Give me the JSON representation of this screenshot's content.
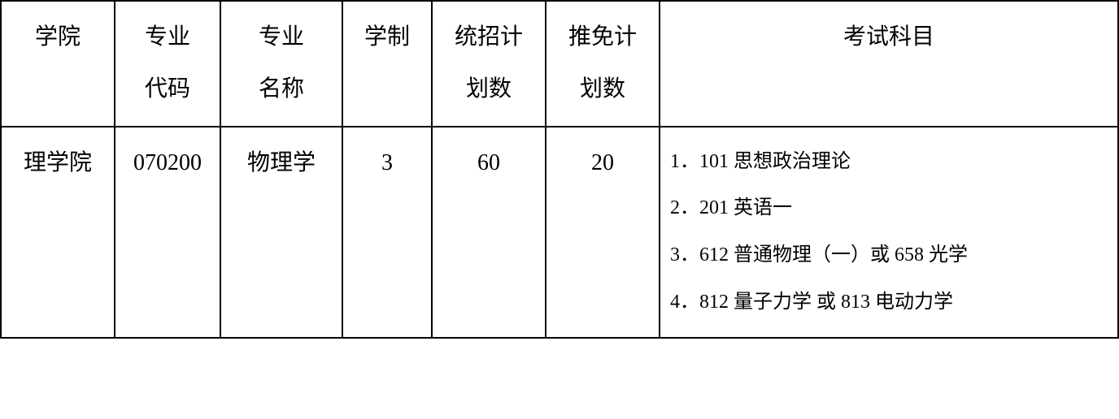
{
  "table": {
    "headers": {
      "college": "学院",
      "code_line1": "专业",
      "code_line2": "代码",
      "name_line1": "专业",
      "name_line2": "名称",
      "duration": "学制",
      "plan1_line1": "统招计",
      "plan1_line2": "划数",
      "plan2_line1": "推免计",
      "plan2_line2": "划数",
      "subjects": "考试科目"
    },
    "row": {
      "college": "理学院",
      "code": "070200",
      "name": "物理学",
      "duration": "3",
      "plan1": "60",
      "plan2": "20",
      "subjects": {
        "s1": "1．101 思想政治理论",
        "s2": "2．201 英语一",
        "s3": "3．612 普通物理（一）或 658 光学",
        "s4": "4．812 量子力学 或 813 电动力学"
      }
    }
  },
  "styling": {
    "border_color": "#000000",
    "background_color": "#ffffff",
    "text_color": "#000000",
    "header_fontsize": 28,
    "cell_fontsize": 28,
    "subject_fontsize": 24,
    "font_family": "SimSun"
  }
}
